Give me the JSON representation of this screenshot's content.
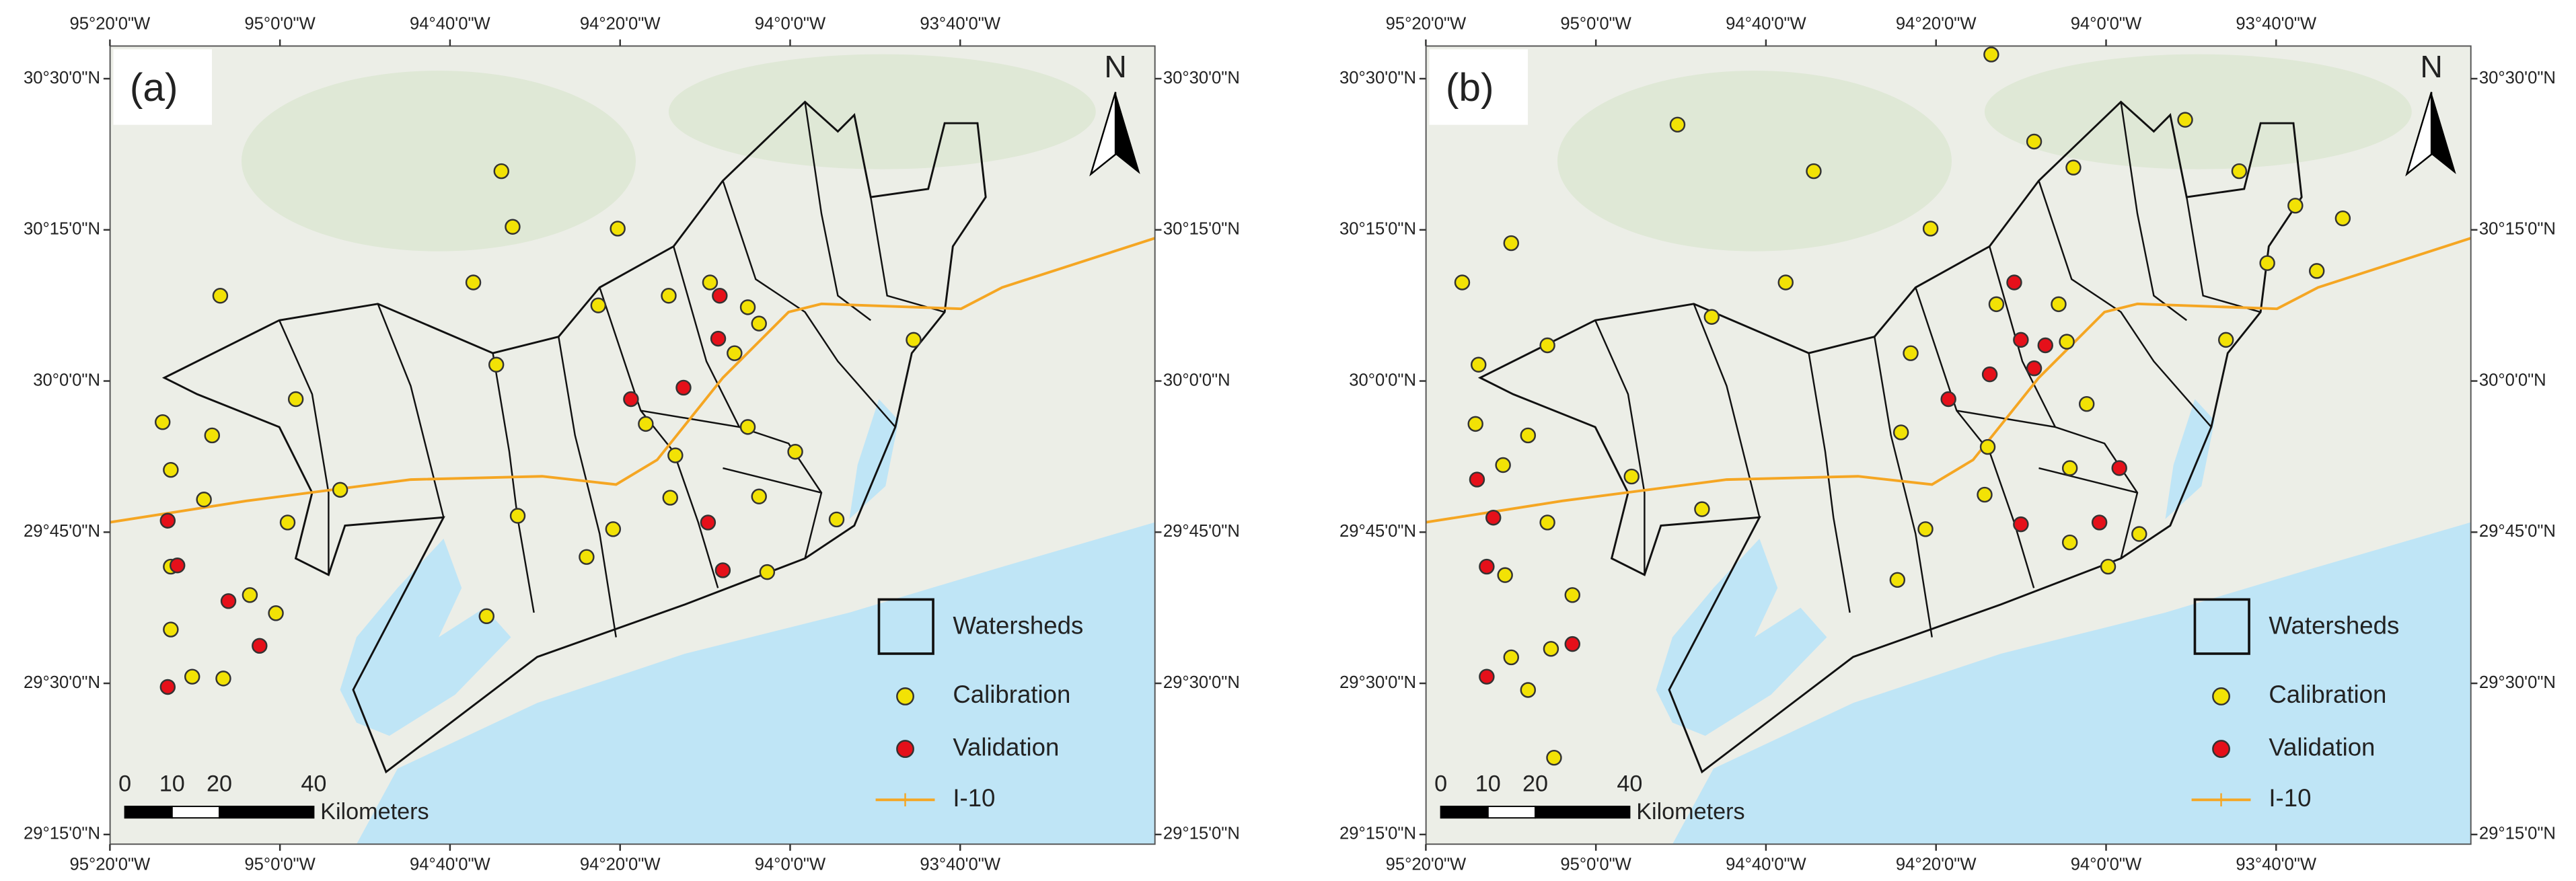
{
  "figure": {
    "xlim": [
      -95.333,
      -93.285
    ],
    "ylim": [
      29.234,
      30.554
    ],
    "lon_ticks": [
      {
        "value": -95.3333,
        "label": "95°20'0\"W"
      },
      {
        "value": -95,
        "label": "95°0'0\"W"
      },
      {
        "value": -94.6667,
        "label": "94°40'0\"W"
      },
      {
        "value": -94.3333,
        "label": "94°20'0\"W"
      },
      {
        "value": -94,
        "label": "94°0'0\"W"
      },
      {
        "value": -93.6667,
        "label": "93°40'0\"W"
      }
    ],
    "lat_ticks": [
      {
        "value": 30.5,
        "label": "30°30'0\"N"
      },
      {
        "value": 30.25,
        "label": "30°15'0\"N"
      },
      {
        "value": 30,
        "label": "30°0'0\"N"
      },
      {
        "value": 29.75,
        "label": "29°45'0\"N"
      },
      {
        "value": 29.5,
        "label": "29°30'0\"N"
      },
      {
        "value": 29.25,
        "label": "29°15'0\"N"
      }
    ],
    "north": "N",
    "scale_bar": {
      "ticks": [
        0,
        10,
        20,
        40
      ],
      "unit": "Kilometers"
    },
    "legend": {
      "watersheds": "Watersheds",
      "calibration": {
        "label": "Calibration",
        "color": "#f2e205"
      },
      "validation": {
        "label": "Validation",
        "color": "#e5101a"
      },
      "i10": {
        "label": "I-10",
        "color": "#f5a623"
      }
    },
    "panels": [
      {
        "label": "(a)",
        "calibration": [
          [
            -94.566,
            30.347
          ],
          [
            -94.544,
            30.255
          ],
          [
            -94.338,
            30.252
          ],
          [
            -94.621,
            30.163
          ],
          [
            -95.117,
            30.141
          ],
          [
            -94.969,
            29.97
          ],
          [
            -95.23,
            29.932
          ],
          [
            -95.133,
            29.91
          ],
          [
            -95.214,
            29.853
          ],
          [
            -95.149,
            29.804
          ],
          [
            -94.985,
            29.766
          ],
          [
            -94.882,
            29.82
          ],
          [
            -94.576,
            30.027
          ],
          [
            -94.534,
            29.777
          ],
          [
            -94.595,
            29.611
          ],
          [
            -95.214,
            29.693
          ],
          [
            -95.059,
            29.646
          ],
          [
            -95.008,
            29.616
          ],
          [
            -95.214,
            29.589
          ],
          [
            -95.111,
            29.508
          ],
          [
            -95.172,
            29.511
          ],
          [
            -94.376,
            30.125
          ],
          [
            -94.238,
            30.141
          ],
          [
            -94.157,
            30.163
          ],
          [
            -94.083,
            30.122
          ],
          [
            -94.061,
            30.095
          ],
          [
            -94.109,
            30.046
          ],
          [
            -94.283,
            29.929
          ],
          [
            -94.225,
            29.877
          ],
          [
            -94.083,
            29.924
          ],
          [
            -93.99,
            29.883
          ],
          [
            -94.061,
            29.809
          ],
          [
            -94.235,
            29.807
          ],
          [
            -94.347,
            29.755
          ],
          [
            -94.399,
            29.709
          ],
          [
            -94.045,
            29.684
          ],
          [
            -93.909,
            29.771
          ],
          [
            -93.758,
            30.068
          ]
        ],
        "validation": [
          [
            -95.22,
            29.769
          ],
          [
            -95.201,
            29.695
          ],
          [
            -95.101,
            29.636
          ],
          [
            -95.04,
            29.562
          ],
          [
            -95.22,
            29.494
          ],
          [
            -94.138,
            30.141
          ],
          [
            -94.141,
            30.07
          ],
          [
            -94.312,
            29.97
          ],
          [
            -94.209,
            29.989
          ],
          [
            -94.161,
            29.766
          ],
          [
            -94.132,
            29.687
          ]
        ]
      },
      {
        "label": "(b)",
        "calibration": [
          [
            -94.225,
            30.54
          ],
          [
            -94.84,
            30.424
          ],
          [
            -94.573,
            30.347
          ],
          [
            -94.141,
            30.396
          ],
          [
            -94.064,
            30.353
          ],
          [
            -93.845,
            30.432
          ],
          [
            -93.739,
            30.347
          ],
          [
            -93.629,
            30.29
          ],
          [
            -93.536,
            30.269
          ],
          [
            -93.587,
            30.182
          ],
          [
            -93.684,
            30.195
          ],
          [
            -94.344,
            30.252
          ],
          [
            -95.166,
            30.228
          ],
          [
            -95.262,
            30.163
          ],
          [
            -94.628,
            30.163
          ],
          [
            -94.773,
            30.106
          ],
          [
            -95.095,
            30.059
          ],
          [
            -95.23,
            30.027
          ],
          [
            -95.236,
            29.929
          ],
          [
            -95.133,
            29.91
          ],
          [
            -95.182,
            29.861
          ],
          [
            -95.095,
            29.766
          ],
          [
            -94.93,
            29.842
          ],
          [
            -94.792,
            29.788
          ],
          [
            -95.178,
            29.679
          ],
          [
            -95.046,
            29.646
          ],
          [
            -95.088,
            29.557
          ],
          [
            -95.166,
            29.543
          ],
          [
            -95.133,
            29.489
          ],
          [
            -95.082,
            29.377
          ],
          [
            -94.402,
            29.915
          ],
          [
            -94.383,
            30.046
          ],
          [
            -94.215,
            30.127
          ],
          [
            -94.093,
            30.127
          ],
          [
            -94.077,
            30.065
          ],
          [
            -94.038,
            29.962
          ],
          [
            -94.232,
            29.891
          ],
          [
            -94.238,
            29.812
          ],
          [
            -94.071,
            29.856
          ],
          [
            -94.071,
            29.733
          ],
          [
            -93.996,
            29.693
          ],
          [
            -94.354,
            29.755
          ],
          [
            -94.409,
            29.671
          ],
          [
            -93.935,
            29.747
          ],
          [
            -93.765,
            30.068
          ]
        ],
        "validation": [
          [
            -94.18,
            30.163
          ],
          [
            -94.119,
            30.059
          ],
          [
            -94.141,
            30.021
          ],
          [
            -94.167,
            30.068
          ],
          [
            -94.228,
            30.011
          ],
          [
            -94.309,
            29.97
          ],
          [
            -94.013,
            29.766
          ],
          [
            -93.974,
            29.856
          ],
          [
            -95.233,
            29.837
          ],
          [
            -95.201,
            29.774
          ],
          [
            -95.214,
            29.693
          ],
          [
            -95.214,
            29.511
          ],
          [
            -95.046,
            29.565
          ],
          [
            -94.167,
            29.763
          ]
        ]
      }
    ]
  }
}
